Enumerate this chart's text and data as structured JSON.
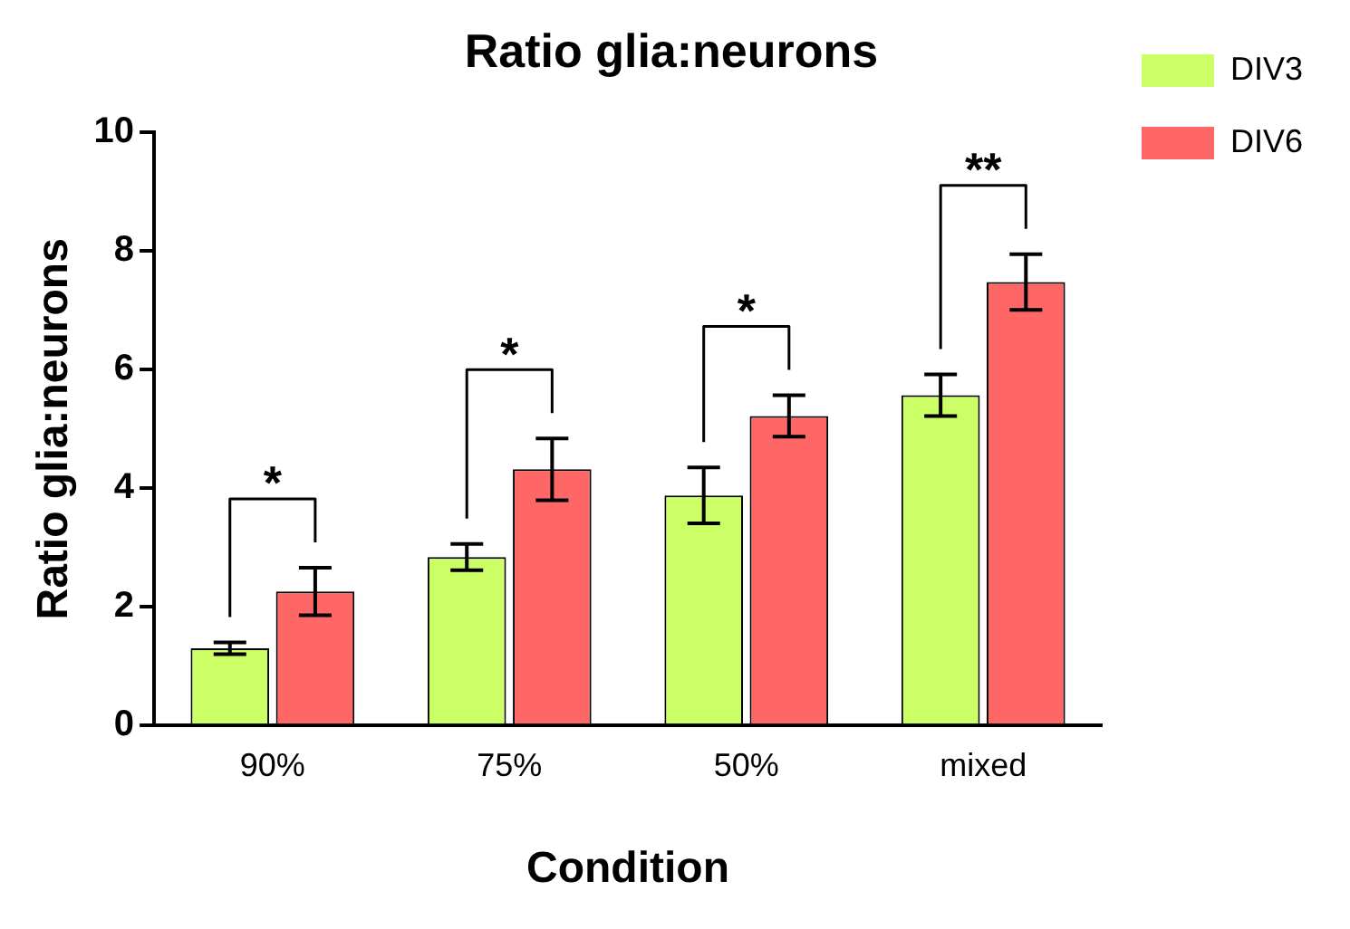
{
  "chart_data": {
    "type": "bar",
    "title": "Ratio glia:neurons",
    "xlabel": "Condition",
    "ylabel": "Ratio glia:neurons",
    "categories": [
      "90%",
      "75%",
      "50%",
      "mixed"
    ],
    "series": [
      {
        "name": "DIV3",
        "color": "#ccff66",
        "values": [
          1.3,
          2.84,
          3.88,
          5.57
        ],
        "errors": [
          0.1,
          0.22,
          0.47,
          0.35
        ]
      },
      {
        "name": "DIV6",
        "color": "#ff6666",
        "values": [
          2.26,
          4.32,
          5.22,
          7.48
        ],
        "errors": [
          0.4,
          0.52,
          0.35,
          0.47
        ]
      }
    ],
    "ylim": [
      0,
      10
    ],
    "yticks": [
      0,
      2,
      4,
      6,
      8,
      10
    ],
    "grid": false,
    "legend": "top right",
    "annotations": [
      "*",
      "*",
      "*",
      "**"
    ]
  }
}
